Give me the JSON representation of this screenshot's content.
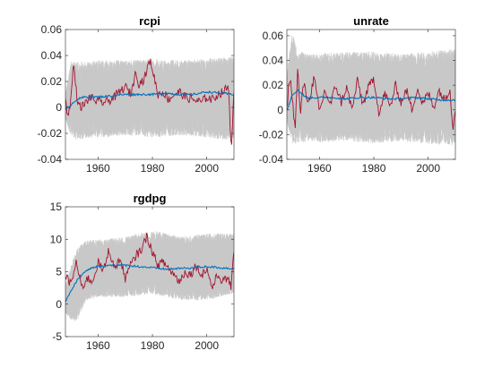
{
  "colors": {
    "band": "#c8c8c8",
    "actual": "#a2142f",
    "mean": "#0072bd",
    "axis": "#262626",
    "background": "#ffffff"
  },
  "chart_data": [
    {
      "type": "line",
      "title": "rcpi",
      "xlabel": "",
      "ylabel": "",
      "xlim": [
        1948,
        2010
      ],
      "ylim": [
        -0.04,
        0.06
      ],
      "xticks": [
        1960,
        1980,
        2000
      ],
      "yticks": [
        -0.04,
        -0.02,
        0,
        0.02,
        0.04,
        0.06
      ],
      "ytick_labels": [
        "-0.04",
        "-0.02",
        "0",
        "0.02",
        "0.04",
        "0.06"
      ],
      "grid": false,
      "series": [
        {
          "role": "simulated-paths-band",
          "x": [
            1948,
            1950,
            1952,
            1956,
            1960,
            1970,
            1980,
            1990,
            2000,
            2010
          ],
          "upper": [
            0.01,
            0.036,
            0.036,
            0.036,
            0.037,
            0.037,
            0.038,
            0.037,
            0.038,
            0.04
          ],
          "lower": [
            -0.01,
            -0.022,
            -0.026,
            -0.024,
            -0.024,
            -0.022,
            -0.024,
            -0.022,
            -0.024,
            -0.026
          ]
        },
        {
          "role": "actual",
          "x": [
            1948,
            1949,
            1950,
            1951,
            1952,
            1953,
            1955,
            1957,
            1960,
            1963,
            1966,
            1968,
            1970,
            1972,
            1974,
            1975,
            1977,
            1979,
            1980,
            1981,
            1982,
            1984,
            1986,
            1988,
            1990,
            1992,
            1995,
            1998,
            2000,
            2002,
            2004,
            2006,
            2008,
            2009,
            2010
          ],
          "y": [
            0.004,
            -0.006,
            0.006,
            0.034,
            0.012,
            0.0,
            0.002,
            0.008,
            0.004,
            0.004,
            0.008,
            0.012,
            0.016,
            0.01,
            0.028,
            0.018,
            0.022,
            0.036,
            0.03,
            0.02,
            0.01,
            0.012,
            0.006,
            0.01,
            0.012,
            0.008,
            0.006,
            0.004,
            0.008,
            0.006,
            0.01,
            0.012,
            0.016,
            -0.032,
            0.01
          ]
        },
        {
          "role": "mean",
          "x": [
            1948,
            1950,
            1952,
            1955,
            1960,
            1965,
            1970,
            1975,
            1980,
            1985,
            1990,
            1995,
            2000,
            2005,
            2010
          ],
          "y": [
            -0.002,
            0.002,
            0.006,
            0.008,
            0.008,
            0.009,
            0.01,
            0.01,
            0.01,
            0.011,
            0.01,
            0.01,
            0.012,
            0.011,
            0.01
          ]
        }
      ]
    },
    {
      "type": "line",
      "title": "unrate",
      "xlabel": "",
      "ylabel": "",
      "xlim": [
        1948,
        2010
      ],
      "ylim": [
        -0.04,
        0.065
      ],
      "xticks": [
        1960,
        1980,
        2000
      ],
      "yticks": [
        -0.04,
        -0.02,
        0,
        0.02,
        0.04,
        0.06
      ],
      "ytick_labels": [
        "-0.04",
        "-0.02",
        "0",
        "0.02",
        "0.04",
        "0.06"
      ],
      "grid": false,
      "series": [
        {
          "role": "simulated-paths-band",
          "x": [
            1948,
            1950,
            1952,
            1956,
            1960,
            1970,
            1980,
            1990,
            2000,
            2010
          ],
          "upper": [
            0.03,
            0.065,
            0.05,
            0.046,
            0.046,
            0.048,
            0.048,
            0.046,
            0.048,
            0.05
          ],
          "lower": [
            -0.01,
            -0.028,
            -0.028,
            -0.026,
            -0.027,
            -0.026,
            -0.028,
            -0.026,
            -0.028,
            -0.03
          ]
        },
        {
          "role": "actual",
          "x": [
            1948,
            1949,
            1950,
            1951,
            1952,
            1953,
            1954,
            1956,
            1958,
            1960,
            1962,
            1964,
            1966,
            1968,
            1970,
            1972,
            1974,
            1976,
            1978,
            1980,
            1982,
            1984,
            1986,
            1988,
            1990,
            1992,
            1994,
            1996,
            1998,
            2000,
            2002,
            2004,
            2006,
            2008,
            2009,
            2010
          ],
          "y": [
            0.0,
            0.028,
            0.01,
            -0.016,
            0.034,
            -0.006,
            0.022,
            0.006,
            0.026,
            -0.002,
            0.016,
            0.004,
            0.02,
            0.006,
            0.018,
            0.0,
            0.024,
            0.004,
            0.018,
            0.026,
            -0.004,
            0.014,
            0.002,
            0.02,
            0.006,
            0.016,
            0.0,
            0.018,
            0.004,
            0.014,
            0.002,
            0.016,
            0.008,
            0.018,
            -0.016,
            0.002
          ]
        },
        {
          "role": "mean",
          "x": [
            1948,
            1950,
            1952,
            1955,
            1960,
            1965,
            1970,
            1975,
            1980,
            1985,
            1990,
            1995,
            2000,
            2005,
            2010
          ],
          "y": [
            0.0,
            0.012,
            0.016,
            0.01,
            0.01,
            0.01,
            0.009,
            0.01,
            0.01,
            0.009,
            0.009,
            0.01,
            0.009,
            0.008,
            0.008
          ]
        }
      ]
    },
    {
      "type": "line",
      "title": "rgdpg",
      "xlabel": "",
      "ylabel": "",
      "xlim": [
        1948,
        2010
      ],
      "ylim": [
        -5,
        15
      ],
      "xticks": [
        1960,
        1980,
        2000
      ],
      "yticks": [
        -5,
        0,
        5,
        10,
        15
      ],
      "ytick_labels": [
        "-5",
        "0",
        "5",
        "10",
        "15"
      ],
      "grid": false,
      "series": [
        {
          "role": "simulated-paths-band",
          "x": [
            1948,
            1950,
            1952,
            1954,
            1956,
            1960,
            1970,
            1980,
            1990,
            2000,
            2010
          ],
          "upper": [
            3,
            6,
            8.5,
            9.5,
            10,
            10,
            10.5,
            11.5,
            10.5,
            11,
            11
          ],
          "lower": [
            -1.5,
            -2.5,
            -3,
            -1,
            0.5,
            1,
            1,
            1.5,
            0.5,
            0.5,
            1.5
          ]
        },
        {
          "role": "actual",
          "x": [
            1948,
            1950,
            1952,
            1954,
            1956,
            1958,
            1960,
            1962,
            1964,
            1966,
            1968,
            1970,
            1972,
            1974,
            1976,
            1978,
            1980,
            1982,
            1984,
            1986,
            1988,
            1990,
            1992,
            1994,
            1996,
            1998,
            2000,
            2002,
            2004,
            2006,
            2008,
            2009,
            2010
          ],
          "y": [
            4.5,
            3.0,
            6.5,
            2.5,
            4.0,
            3.5,
            6.5,
            5.0,
            8.5,
            5.5,
            7.0,
            4.0,
            6.0,
            7.5,
            8.5,
            10.5,
            8.0,
            6.0,
            6.5,
            5.5,
            4.5,
            3.5,
            5.0,
            4.5,
            6.0,
            4.5,
            5.5,
            2.5,
            4.5,
            3.5,
            4.0,
            2.5,
            8.0
          ]
        },
        {
          "role": "mean",
          "x": [
            1948,
            1950,
            1952,
            1954,
            1956,
            1958,
            1960,
            1965,
            1970,
            1975,
            1980,
            1985,
            1990,
            1995,
            2000,
            2005,
            2010
          ],
          "y": [
            0.5,
            2.0,
            3.5,
            4.5,
            5.2,
            5.6,
            5.8,
            6.0,
            6.0,
            5.8,
            5.6,
            5.4,
            5.5,
            5.6,
            5.8,
            5.6,
            5.5
          ]
        }
      ]
    }
  ]
}
